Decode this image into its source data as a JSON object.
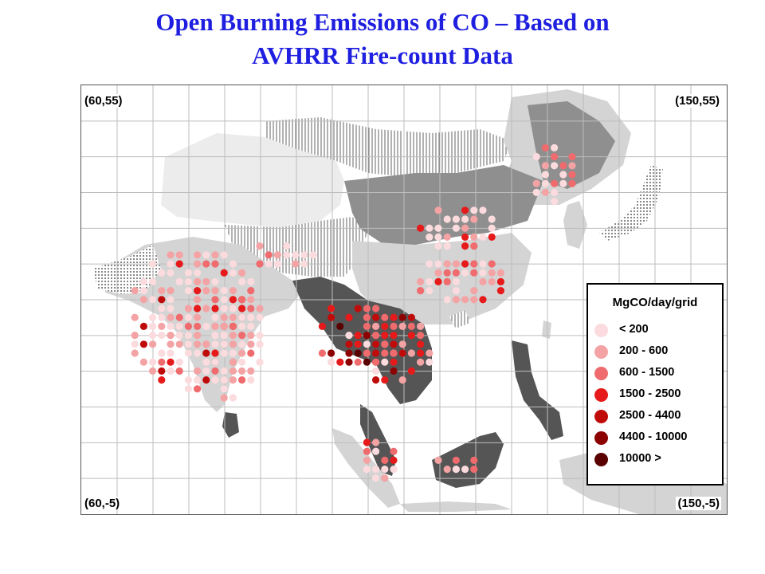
{
  "title": {
    "line1": "Open Burning Emissions of CO – Based on",
    "line2": "AVHRR Fire-count Data"
  },
  "map": {
    "corner_labels": {
      "top_left": "(60,55)",
      "top_right": "(150,55)",
      "bottom_left": "(60,-5)",
      "bottom_right": "(150,-5)"
    },
    "land_colors": {
      "light_gray": "#d4d4d4",
      "very_light_gray": "#ececec",
      "dark_gray": "#8f8f8f",
      "darkest_gray": "#555555",
      "grid": "#bdbdbd"
    }
  },
  "legend": {
    "title": "MgCO/day/grid",
    "items": [
      {
        "label": "< 200",
        "color": "#fbdbdd"
      },
      {
        "label": "200 - 600",
        "color": "#f4a3a5"
      },
      {
        "label": "600 - 1500",
        "color": "#ef6b6d"
      },
      {
        "label": "1500 - 2500",
        "color": "#e61a1a"
      },
      {
        "label": "2500 - 4400",
        "color": "#c00b0b"
      },
      {
        "label": "4400 - 10000",
        "color": "#8c0000"
      },
      {
        "label": "10000 >",
        "color": "#5a0000"
      }
    ]
  }
}
